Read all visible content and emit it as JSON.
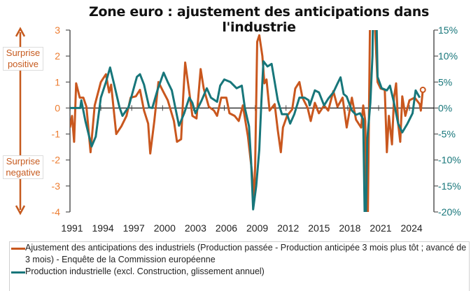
{
  "title": "Zone euro : ajustement des anticipations dans l'industrie",
  "annotations": {
    "positive": "Surprise positive",
    "negative": "Surprise negative"
  },
  "colors": {
    "orange": "#C9571E",
    "teal": "#17767A",
    "left_ticks": "#ED7D31"
  },
  "chart_data": {
    "type": "line",
    "title": "Zone euro : ajustement des anticipations dans l'industrie",
    "x_ticks": [
      "1991",
      "1994",
      "1997",
      "2000",
      "2003",
      "2006",
      "2009",
      "2012",
      "2015",
      "2018",
      "2021",
      "2024"
    ],
    "xlim": [
      1991,
      2026.3
    ],
    "y_left": {
      "lim": [
        -4,
        3
      ],
      "ticks": [
        "3",
        "2",
        "1",
        "0",
        "-1",
        "-2",
        "-3",
        "-4"
      ]
    },
    "y_right": {
      "lim": [
        -20,
        15
      ],
      "ticks": [
        "15%",
        "10%",
        "5%",
        "0%",
        "-5%",
        "-10%",
        "-15%",
        "-20%"
      ]
    },
    "grid": false,
    "legend_position": "bottom",
    "series": [
      {
        "name": "Ajustement des anticipations des industriels (Production passée - Production anticipée 3 mois plus tôt ; avancé de 3 mois) - Enquête de la Commission européenne",
        "axis": "left",
        "color": "#C9571E",
        "points": [
          [
            1991.0,
            -0.75
          ],
          [
            1991.2,
            -0.3
          ],
          [
            1991.4,
            -1.3
          ],
          [
            1991.6,
            0.95
          ],
          [
            1991.95,
            0.4
          ],
          [
            1992.3,
            0.4
          ],
          [
            1992.6,
            0.05
          ],
          [
            1993.0,
            -1.7
          ],
          [
            1993.4,
            0.1
          ],
          [
            1994.0,
            1.0
          ],
          [
            1994.5,
            1.3
          ],
          [
            1994.8,
            0.6
          ],
          [
            1995.0,
            0.9
          ],
          [
            1995.5,
            -1.0
          ],
          [
            1996.0,
            -0.7
          ],
          [
            1996.5,
            -0.3
          ],
          [
            1996.9,
            0.4
          ],
          [
            1997.4,
            0.45
          ],
          [
            1997.8,
            0.7
          ],
          [
            1998.2,
            -0.1
          ],
          [
            1998.6,
            -0.6
          ],
          [
            1998.8,
            -1.75
          ],
          [
            1999.2,
            -0.5
          ],
          [
            1999.6,
            1.0
          ],
          [
            2000.1,
            0.6
          ],
          [
            2000.5,
            0.3
          ],
          [
            2001.1,
            -0.5
          ],
          [
            2001.4,
            -1.3
          ],
          [
            2001.8,
            -1.2
          ],
          [
            2002.0,
            0.4
          ],
          [
            2002.2,
            1.75
          ],
          [
            2002.6,
            0.6
          ],
          [
            2002.9,
            -0.3
          ],
          [
            2003.3,
            -0.4
          ],
          [
            2003.7,
            1.5
          ],
          [
            2004.0,
            0.75
          ],
          [
            2004.5,
            0.05
          ],
          [
            2005.0,
            -0.1
          ],
          [
            2005.3,
            -0.3
          ],
          [
            2005.7,
            0.4
          ],
          [
            2006.2,
            0.4
          ],
          [
            2006.5,
            -0.2
          ],
          [
            2007.0,
            -0.3
          ],
          [
            2007.4,
            -0.5
          ],
          [
            2007.8,
            0.1
          ],
          [
            2008.3,
            -1.1
          ],
          [
            2008.7,
            -2.5
          ],
          [
            2008.9,
            -3.55
          ],
          [
            2009.0,
            -2.2
          ],
          [
            2009.2,
            2.55
          ],
          [
            2009.4,
            2.8
          ],
          [
            2009.7,
            2.0
          ],
          [
            2009.9,
            0.95
          ],
          [
            2010.1,
            1.1
          ],
          [
            2010.4,
            -0.1
          ],
          [
            2010.9,
            0.15
          ],
          [
            2011.2,
            -0.85
          ],
          [
            2011.5,
            -1.7
          ],
          [
            2011.7,
            -0.75
          ],
          [
            2012.1,
            -0.3
          ],
          [
            2012.6,
            -0.05
          ],
          [
            2012.9,
            0.75
          ],
          [
            2013.3,
            1.0
          ],
          [
            2013.6,
            0.4
          ],
          [
            2014.1,
            0.0
          ],
          [
            2014.4,
            -0.5
          ],
          [
            2014.8,
            0.2
          ],
          [
            2015.2,
            -0.2
          ],
          [
            2015.7,
            0.1
          ],
          [
            2016.1,
            -0.1
          ],
          [
            2016.6,
            0.65
          ],
          [
            2017.0,
            0.05
          ],
          [
            2017.5,
            0.4
          ],
          [
            2017.9,
            -0.75
          ],
          [
            2018.4,
            0.4
          ],
          [
            2018.8,
            -0.45
          ],
          [
            2019.3,
            -0.75
          ],
          [
            2019.5,
            0.1
          ],
          [
            2019.7,
            -0.5
          ],
          [
            2019.9,
            -6.0
          ],
          [
            2020.2,
            4.5
          ],
          [
            2020.6,
            3.5
          ],
          [
            2020.9,
            1.0
          ],
          [
            2021.2,
            0.75
          ],
          [
            2021.6,
            0.7
          ],
          [
            2021.8,
            -1.7
          ],
          [
            2022.0,
            -0.3
          ],
          [
            2022.3,
            -1.4
          ],
          [
            2022.5,
            0.4
          ],
          [
            2022.7,
            0.95
          ],
          [
            2022.9,
            -0.6
          ],
          [
            2023.1,
            -1.3
          ],
          [
            2023.3,
            0.45
          ],
          [
            2023.6,
            -0.3
          ],
          [
            2024.0,
            0.3
          ],
          [
            2024.5,
            0.4
          ],
          [
            2025.0,
            0.15
          ],
          [
            2025.1,
            -0.1
          ],
          [
            2025.3,
            0.7
          ]
        ]
      },
      {
        "name": "Production industrielle (excl. Construction, glissement annuel)",
        "axis": "right",
        "color": "#17767A",
        "points": [
          [
            1991.0,
            0
          ],
          [
            1992.0,
            0
          ],
          [
            1992.1,
            1.5
          ],
          [
            1992.5,
            -2.5
          ],
          [
            1993.1,
            -7.4
          ],
          [
            1993.5,
            -5.5
          ],
          [
            1994.0,
            2.0
          ],
          [
            1994.5,
            5.0
          ],
          [
            1994.9,
            7.8
          ],
          [
            1995.3,
            4.5
          ],
          [
            1995.8,
            0.2
          ],
          [
            1996.1,
            -1.5
          ],
          [
            1996.7,
            0.2
          ],
          [
            1997.2,
            3.8
          ],
          [
            1997.5,
            6.0
          ],
          [
            1997.8,
            6.5
          ],
          [
            1998.2,
            4.5
          ],
          [
            1998.7,
            0.1
          ],
          [
            1999.0,
            0
          ],
          [
            1999.5,
            3.4
          ],
          [
            2000.1,
            6.8
          ],
          [
            2000.5,
            5.0
          ],
          [
            2000.9,
            3.4
          ],
          [
            2001.4,
            -1.5
          ],
          [
            2001.6,
            -3.4
          ],
          [
            2002.1,
            -1.0
          ],
          [
            2002.6,
            2.0
          ],
          [
            2002.9,
            1.0
          ],
          [
            2003.2,
            -1.0
          ],
          [
            2003.8,
            1.5
          ],
          [
            2004.3,
            3.8
          ],
          [
            2004.7,
            2.0
          ],
          [
            2005.3,
            1.2
          ],
          [
            2005.6,
            4.3
          ],
          [
            2006.0,
            5.5
          ],
          [
            2006.6,
            5.0
          ],
          [
            2007.2,
            3.8
          ],
          [
            2007.7,
            4.3
          ],
          [
            2008.0,
            0
          ],
          [
            2008.4,
            -3.5
          ],
          [
            2008.6,
            -10.0
          ],
          [
            2008.8,
            -19.5
          ],
          [
            2009.1,
            -15.0
          ],
          [
            2009.4,
            -8.0
          ],
          [
            2009.6,
            1.0
          ],
          [
            2009.8,
            9.0
          ],
          [
            2010.2,
            8.0
          ],
          [
            2010.6,
            8.5
          ],
          [
            2010.9,
            5.0
          ],
          [
            2011.2,
            1.5
          ],
          [
            2011.6,
            -1.2
          ],
          [
            2012.1,
            -1.2
          ],
          [
            2012.4,
            -3.0
          ],
          [
            2012.8,
            -1.2
          ],
          [
            2013.3,
            2.0
          ],
          [
            2013.8,
            2.0
          ],
          [
            2014.2,
            1.5
          ],
          [
            2014.3,
            0.5
          ],
          [
            2014.8,
            3.4
          ],
          [
            2015.2,
            3.0
          ],
          [
            2015.7,
            0.5
          ],
          [
            2016.1,
            1.8
          ],
          [
            2016.6,
            3.0
          ],
          [
            2017.0,
            4.7
          ],
          [
            2017.3,
            5.9
          ],
          [
            2017.6,
            2.7
          ],
          [
            2017.9,
            2.2
          ],
          [
            2018.4,
            -0.5
          ],
          [
            2018.8,
            -1.3
          ],
          [
            2019.2,
            -1.0
          ],
          [
            2019.5,
            -2.2
          ],
          [
            2019.7,
            -28.0
          ],
          [
            2019.9,
            -6.0
          ],
          [
            2020.2,
            1.0
          ],
          [
            2020.4,
            10.0
          ],
          [
            2020.6,
            39.0
          ],
          [
            2020.9,
            6.0
          ],
          [
            2021.3,
            3.8
          ],
          [
            2021.8,
            3.4
          ],
          [
            2022.1,
            4.3
          ],
          [
            2022.5,
            1.0
          ],
          [
            2022.9,
            -3.0
          ],
          [
            2023.3,
            -4.7
          ],
          [
            2023.8,
            -3.0
          ],
          [
            2024.3,
            -1.0
          ],
          [
            2024.6,
            3.4
          ],
          [
            2025.0,
            2.0
          ]
        ]
      }
    ]
  },
  "legend": {
    "items": [
      {
        "label": "Ajustement des anticipations des industriels (Production passée - Production anticipée 3 mois plus tôt ; avancé de 3 mois) - Enquête de la Commission européenne"
      },
      {
        "label": "Production industrielle (excl. Construction, glissement annuel)"
      }
    ]
  }
}
